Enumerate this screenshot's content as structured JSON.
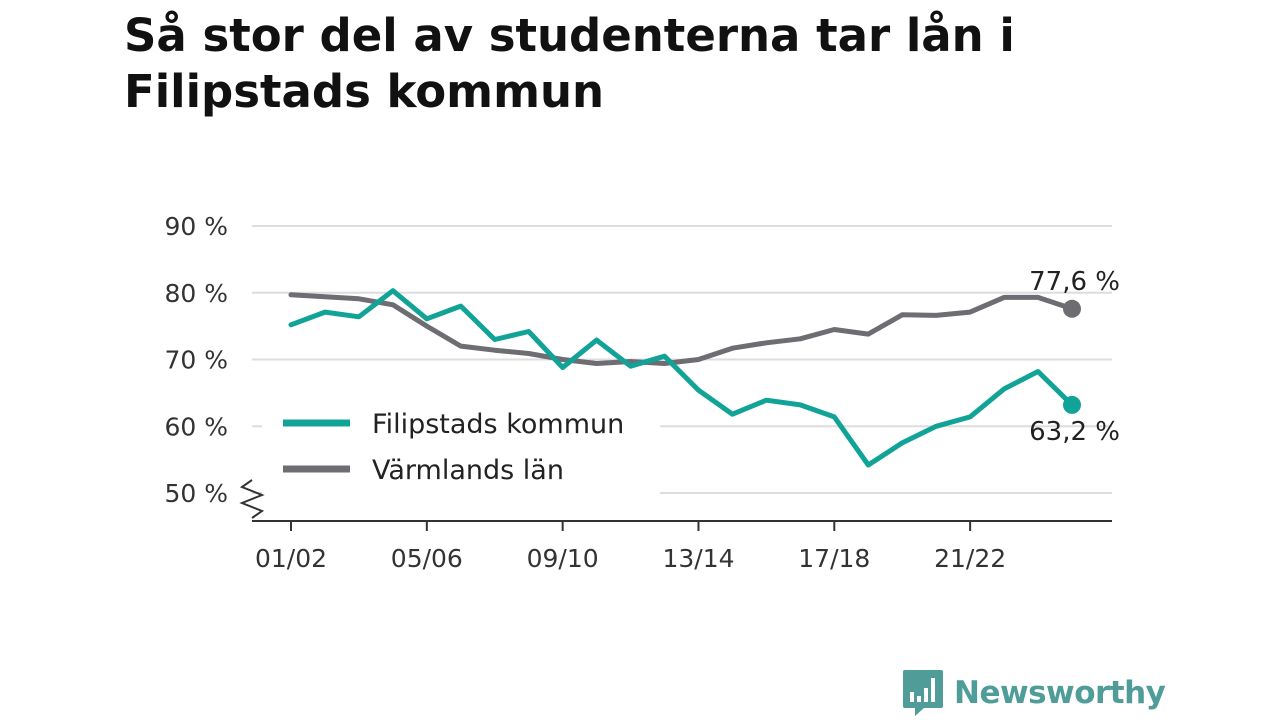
{
  "chart_data": {
    "type": "line",
    "title": "Så stor del av studenterna tar lån i Filipstads kommun",
    "x": [
      "01/02",
      "02/03",
      "03/04",
      "04/05",
      "05/06",
      "06/07",
      "07/08",
      "08/09",
      "09/10",
      "10/11",
      "11/12",
      "12/13",
      "13/14",
      "14/15",
      "15/16",
      "16/17",
      "17/18",
      "18/19",
      "19/20",
      "20/21",
      "21/22",
      "22/23",
      "23/24",
      "24/25"
    ],
    "x_tick_labels": [
      "01/02",
      "05/06",
      "09/10",
      "13/14",
      "17/18",
      "21/22"
    ],
    "y_ticks": [
      50,
      60,
      70,
      80,
      90
    ],
    "y_tick_suffix": " %",
    "ylim": [
      50,
      90
    ],
    "y_axis_break": true,
    "grid": true,
    "legend": "left-bottom",
    "series": [
      {
        "name": "Filipstads kommun",
        "color": "#12a398",
        "values": [
          75.2,
          77.1,
          76.4,
          80.3,
          76.1,
          78.0,
          73.0,
          74.2,
          68.8,
          72.9,
          69.0,
          70.5,
          65.4,
          61.8,
          63.9,
          63.2,
          61.4,
          54.2,
          57.5,
          60.0,
          61.4,
          65.6,
          68.2,
          63.2
        ],
        "end_label": "63,2 %"
      },
      {
        "name": "Värmlands län",
        "color": "#6d6d72",
        "values": [
          79.7,
          79.4,
          79.1,
          78.2,
          75.0,
          72.0,
          71.4,
          70.9,
          70.0,
          69.4,
          69.7,
          69.4,
          70.0,
          71.7,
          72.5,
          73.1,
          74.5,
          73.8,
          76.7,
          76.6,
          77.1,
          79.3,
          79.3,
          77.6
        ],
        "end_label": "77,6 %"
      }
    ]
  },
  "brand": {
    "name": "Newsworthy",
    "color": "#4f9c98"
  }
}
